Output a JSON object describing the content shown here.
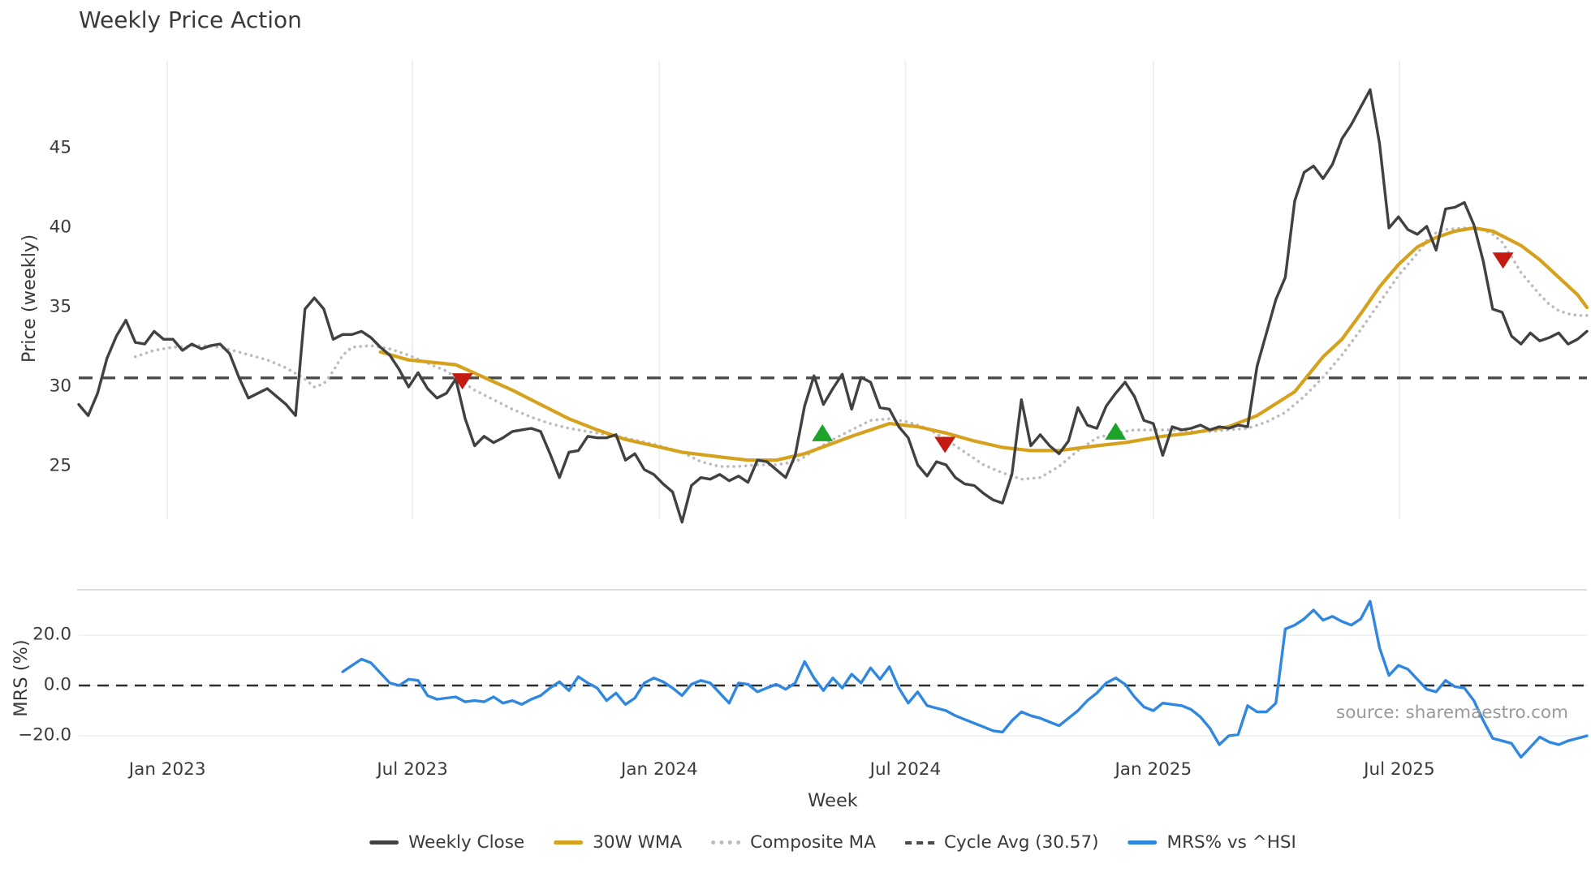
{
  "title": "Weekly Price Action",
  "source_credit": "source: sharemaestro.com",
  "colors": {
    "close": "#414141",
    "wma": "#d6a11c",
    "composite": "#bcbcbc",
    "cycle": "#4a4a4a",
    "mrs": "#2f87e0",
    "sell_marker": "#c41a12",
    "buy_marker": "#1ba32a",
    "gridline": "#ededf2",
    "panel_border": "#d8d8d8"
  },
  "chart_data": {
    "type": "line",
    "title": "Weekly Price Action",
    "xlabel": "Week",
    "price_panel": {
      "ylabel": "Price (weekly)",
      "ylim": [
        21.5,
        50.5
      ],
      "yticks": [
        {
          "value": 45,
          "label": "45"
        },
        {
          "value": 40,
          "label": "40"
        },
        {
          "value": 35,
          "label": "35"
        },
        {
          "value": 30,
          "label": "30"
        },
        {
          "value": 25,
          "label": "25"
        }
      ],
      "cycle_avg": 30.57
    },
    "mrs_panel": {
      "ylabel": "MRS (%)",
      "ylim": [
        -29,
        38
      ],
      "zero_line": 0,
      "yticks": [
        {
          "value": 20,
          "label": "20.0"
        },
        {
          "value": 0,
          "label": "0.0"
        },
        {
          "value": -20,
          "label": "−20.0"
        }
      ]
    },
    "xticks": [
      {
        "week": 9.4,
        "label": "Jan 2023"
      },
      {
        "week": 35.4,
        "label": "Jul 2023"
      },
      {
        "week": 61.6,
        "label": "Jan 2024"
      },
      {
        "week": 87.7,
        "label": "Jul 2024"
      },
      {
        "week": 114.0,
        "label": "Jan 2025"
      },
      {
        "week": 140.1,
        "label": "Jul 2025"
      }
    ],
    "legend": [
      {
        "label": "Weekly Close"
      },
      {
        "label": "30W WMA"
      },
      {
        "label": "Composite MA"
      },
      {
        "label": "Cycle Avg (30.57)"
      },
      {
        "label": "MRS% vs ^HSI"
      }
    ],
    "series": {
      "weekly_close": {
        "name": "Weekly Close",
        "start_week": 0,
        "values": [
          28.9,
          28.2,
          29.6,
          31.8,
          33.2,
          34.2,
          32.8,
          32.7,
          33.5,
          33.0,
          33.0,
          32.3,
          32.7,
          32.4,
          32.6,
          32.7,
          32.1,
          30.6,
          29.3,
          29.6,
          29.9,
          29.4,
          28.9,
          28.2,
          34.9,
          35.6,
          34.9,
          33.0,
          33.3,
          33.3,
          33.5,
          33.1,
          32.5,
          32.0,
          31.1,
          30.0,
          30.9,
          29.9,
          29.3,
          29.6,
          30.5,
          28.0,
          26.3,
          26.9,
          26.5,
          26.8,
          27.2,
          27.3,
          27.4,
          27.2,
          25.8,
          24.3,
          25.9,
          26.0,
          26.9,
          26.8,
          26.8,
          27.0,
          25.4,
          25.8,
          24.8,
          24.5,
          23.9,
          23.4,
          21.5,
          23.8,
          24.3,
          24.2,
          24.5,
          24.1,
          24.4,
          24.0,
          25.4,
          25.3,
          24.8,
          24.3,
          25.7,
          28.8,
          30.7,
          28.9,
          29.9,
          30.8,
          28.6,
          30.6,
          30.3,
          28.7,
          28.6,
          27.5,
          26.8,
          25.1,
          24.4,
          25.3,
          25.1,
          24.3,
          23.9,
          23.8,
          23.3,
          22.9,
          22.7,
          24.5,
          29.2,
          26.3,
          27.0,
          26.3,
          25.8,
          26.6,
          28.7,
          27.6,
          27.4,
          28.8,
          29.6,
          30.3,
          29.4,
          27.9,
          27.7,
          25.7,
          27.5,
          27.3,
          27.4,
          27.6,
          27.3,
          27.5,
          27.4,
          27.6,
          27.5,
          31.3,
          33.4,
          35.5,
          36.9,
          41.7,
          43.5,
          43.9,
          43.1,
          44.0,
          45.6,
          46.5,
          47.6,
          48.7,
          45.3,
          40.0,
          40.7,
          39.9,
          39.6,
          40.1,
          38.6,
          41.2,
          41.3,
          41.6,
          40.2,
          37.9,
          34.9,
          34.7,
          33.2,
          32.7,
          33.4,
          32.9,
          33.1,
          33.4,
          32.7,
          33.0,
          33.5
        ]
      },
      "wma_30w": {
        "name": "30W WMA",
        "points": [
          [
            32,
            32.2
          ],
          [
            35,
            31.7
          ],
          [
            40,
            31.4
          ],
          [
            43,
            30.6
          ],
          [
            46,
            29.8
          ],
          [
            49,
            28.9
          ],
          [
            52,
            28.0
          ],
          [
            55,
            27.3
          ],
          [
            58,
            26.7
          ],
          [
            61,
            26.3
          ],
          [
            64,
            25.9
          ],
          [
            68,
            25.6
          ],
          [
            71,
            25.4
          ],
          [
            74,
            25.4
          ],
          [
            77,
            25.8
          ],
          [
            82,
            26.9
          ],
          [
            86,
            27.7
          ],
          [
            89,
            27.5
          ],
          [
            92,
            27.1
          ],
          [
            95,
            26.6
          ],
          [
            98,
            26.2
          ],
          [
            101,
            26.0
          ],
          [
            104,
            26.0
          ],
          [
            108,
            26.3
          ],
          [
            111,
            26.5
          ],
          [
            115,
            26.9
          ],
          [
            118,
            27.1
          ],
          [
            122,
            27.5
          ],
          [
            125,
            28.2
          ],
          [
            129,
            29.7
          ],
          [
            132,
            31.9
          ],
          [
            134,
            33.0
          ],
          [
            136,
            34.6
          ],
          [
            138,
            36.3
          ],
          [
            140,
            37.7
          ],
          [
            142,
            38.8
          ],
          [
            144,
            39.4
          ],
          [
            146,
            39.8
          ],
          [
            148,
            40.0
          ],
          [
            150,
            39.8
          ],
          [
            151,
            39.5
          ],
          [
            153,
            38.9
          ],
          [
            155,
            38.0
          ],
          [
            157,
            36.9
          ],
          [
            159,
            35.8
          ],
          [
            160,
            35.0
          ]
        ]
      },
      "composite_ma": {
        "name": "Composite MA",
        "points": [
          [
            6,
            31.9
          ],
          [
            8,
            32.3
          ],
          [
            10,
            32.5
          ],
          [
            13,
            32.6
          ],
          [
            15,
            32.5
          ],
          [
            17,
            32.2
          ],
          [
            20,
            31.7
          ],
          [
            22,
            31.2
          ],
          [
            24,
            30.5
          ],
          [
            25,
            30.0
          ],
          [
            26,
            30.2
          ],
          [
            27,
            31.0
          ],
          [
            28,
            32.0
          ],
          [
            29,
            32.5
          ],
          [
            31,
            32.6
          ],
          [
            33,
            32.4
          ],
          [
            35,
            32.0
          ],
          [
            37,
            31.5
          ],
          [
            39,
            31.0
          ],
          [
            40,
            30.6
          ],
          [
            42,
            29.8
          ],
          [
            44,
            29.2
          ],
          [
            46,
            28.6
          ],
          [
            48,
            28.1
          ],
          [
            50,
            27.7
          ],
          [
            52,
            27.4
          ],
          [
            54,
            27.2
          ],
          [
            56,
            27.0
          ],
          [
            58,
            26.8
          ],
          [
            61,
            26.4
          ],
          [
            64,
            25.9
          ],
          [
            66,
            25.3
          ],
          [
            68,
            25.0
          ],
          [
            70,
            25.0
          ],
          [
            72,
            25.1
          ],
          [
            74,
            25.1
          ],
          [
            76,
            25.3
          ],
          [
            77,
            25.6
          ],
          [
            78,
            26.0
          ],
          [
            80,
            26.7
          ],
          [
            82,
            27.3
          ],
          [
            84,
            27.9
          ],
          [
            86,
            28.0
          ],
          [
            88,
            27.8
          ],
          [
            90,
            27.4
          ],
          [
            92,
            26.7
          ],
          [
            94,
            25.9
          ],
          [
            96,
            25.1
          ],
          [
            98,
            24.6
          ],
          [
            100,
            24.2
          ],
          [
            102,
            24.3
          ],
          [
            104,
            25.0
          ],
          [
            106,
            26.0
          ],
          [
            108,
            26.8
          ],
          [
            110,
            27.1
          ],
          [
            112,
            27.3
          ],
          [
            114,
            27.3
          ],
          [
            116,
            27.3
          ],
          [
            118,
            27.2
          ],
          [
            120,
            27.2
          ],
          [
            122,
            27.3
          ],
          [
            124,
            27.4
          ],
          [
            126,
            27.8
          ],
          [
            128,
            28.4
          ],
          [
            130,
            29.4
          ],
          [
            132,
            30.6
          ],
          [
            134,
            32.0
          ],
          [
            136,
            33.6
          ],
          [
            138,
            35.3
          ],
          [
            140,
            37.0
          ],
          [
            142,
            38.4
          ],
          [
            143,
            39.2
          ],
          [
            144,
            39.7
          ],
          [
            145,
            39.9
          ],
          [
            147,
            40.0
          ],
          [
            149,
            39.9
          ],
          [
            150,
            39.6
          ],
          [
            151,
            39.1
          ],
          [
            152,
            38.2
          ],
          [
            153,
            37.2
          ],
          [
            154,
            36.5
          ],
          [
            155,
            35.8
          ],
          [
            156,
            35.2
          ],
          [
            157,
            34.8
          ],
          [
            158,
            34.6
          ],
          [
            159,
            34.5
          ],
          [
            160,
            34.5
          ]
        ]
      },
      "mrs_pct": {
        "name": "MRS% vs ^HSI",
        "start_week": 28,
        "values": [
          5.5,
          8,
          10.5,
          9,
          5,
          1,
          0,
          2.5,
          2,
          -4,
          -5.5,
          -5,
          -4.5,
          -6.5,
          -6,
          -6.5,
          -4.5,
          -7,
          -6,
          -7.5,
          -5.5,
          -4,
          -1,
          1.5,
          -2,
          3.5,
          1,
          -1,
          -6,
          -3,
          -7.5,
          -5,
          1,
          3,
          1.5,
          -1,
          -4,
          0.5,
          2,
          1,
          -3,
          -7,
          1,
          0.5,
          -2.5,
          -1,
          0.5,
          -1.5,
          1,
          9.5,
          3,
          -2,
          3,
          -1,
          4.5,
          1,
          7,
          2.5,
          7.5,
          -1,
          -7,
          -2.5,
          -8,
          -9,
          -10,
          -12,
          -13.5,
          -15,
          -16.5,
          -18,
          -18.5,
          -14,
          -10.5,
          -12,
          -13,
          -14.5,
          -16,
          -13,
          -10,
          -6,
          -3,
          1,
          3,
          0.5,
          -4.5,
          -8.5,
          -10,
          -7,
          -7.5,
          -8,
          -9.5,
          -12.5,
          -17,
          -23.5,
          -20,
          -19.5,
          -8,
          -10.5,
          -10.5,
          -7,
          22.5,
          24,
          26.5,
          30,
          26,
          27.5,
          25.5,
          24,
          26.5,
          33.5,
          15,
          4,
          8,
          6.5,
          2.5,
          -1.5,
          -2.5,
          2,
          -0.5,
          -1,
          -6,
          -14,
          -21,
          -22,
          -23,
          -28.5,
          -24.5,
          -20.5,
          -22.5,
          -23.5,
          -22,
          -21,
          -20
        ]
      }
    },
    "signals": [
      {
        "type": "sell",
        "week": 40.7,
        "value": 30.4
      },
      {
        "type": "buy",
        "week": 78.9,
        "value": 27.1
      },
      {
        "type": "sell",
        "week": 91.9,
        "value": 26.4
      },
      {
        "type": "buy",
        "week": 110.0,
        "value": 27.2
      },
      {
        "type": "sell",
        "week": 151.1,
        "value": 38.0
      }
    ]
  }
}
